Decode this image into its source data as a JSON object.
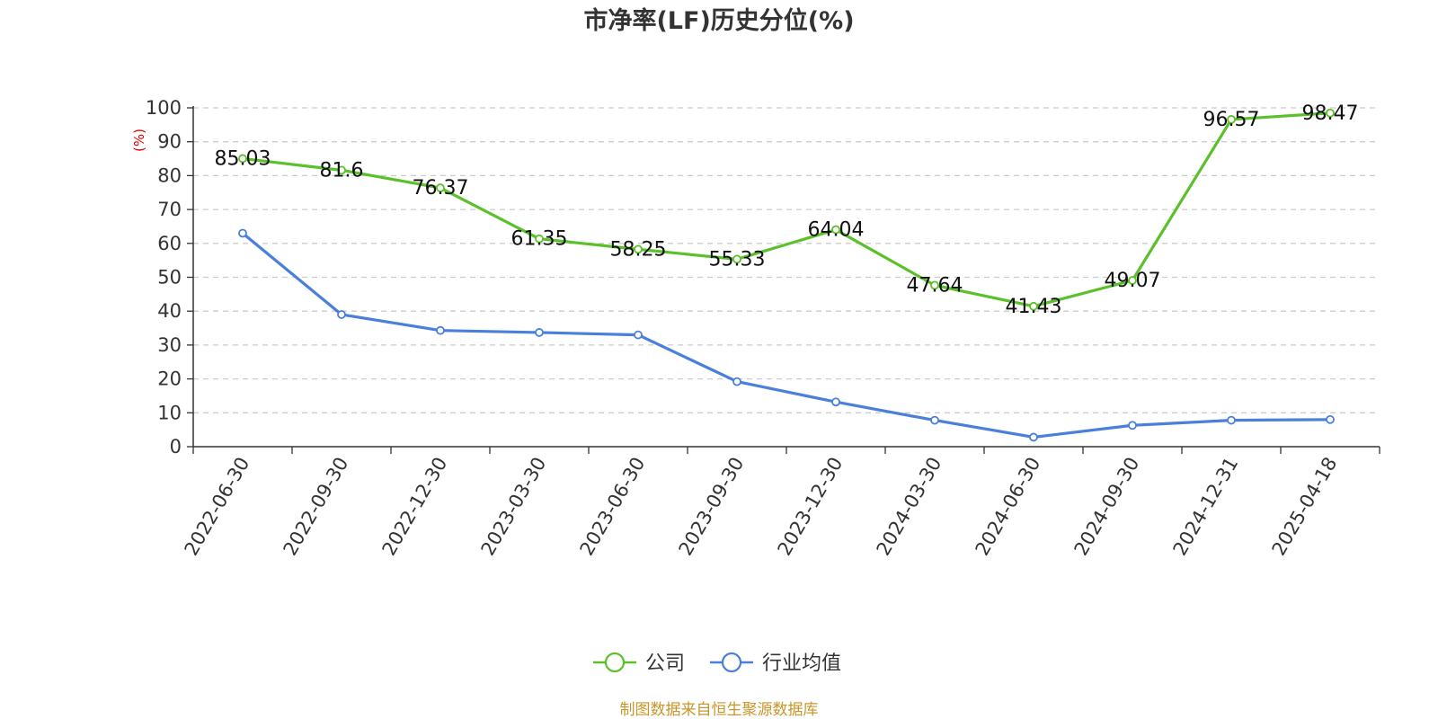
{
  "chart_data": {
    "type": "line",
    "title": "市净率(LF)历史分位(%)",
    "ylabel": "(%)",
    "ylim": [
      0,
      100
    ],
    "yticks": [
      0,
      10,
      20,
      30,
      40,
      50,
      60,
      70,
      80,
      90,
      100
    ],
    "grid": true,
    "legend_position": "bottom",
    "categories": [
      "2022-06-30",
      "2022-09-30",
      "2022-12-30",
      "2023-03-30",
      "2023-06-30",
      "2023-09-30",
      "2023-12-30",
      "2024-03-30",
      "2024-06-30",
      "2024-09-30",
      "2024-12-31",
      "2025-04-18"
    ],
    "series": [
      {
        "name": "公司",
        "color": "#5bc12a",
        "values": [
          85.03,
          81.6,
          76.37,
          61.35,
          58.25,
          55.33,
          64.04,
          47.64,
          41.43,
          49.07,
          96.57,
          98.47
        ],
        "show_labels": true
      },
      {
        "name": "行业均值",
        "color": "#4a7fdc",
        "values": [
          63.0,
          39.0,
          34.3,
          33.7,
          33.0,
          19.2,
          13.2,
          7.8,
          2.8,
          6.3,
          7.8,
          8.0
        ],
        "show_labels": false
      }
    ],
    "source": "制图数据来自恒生聚源数据库"
  }
}
